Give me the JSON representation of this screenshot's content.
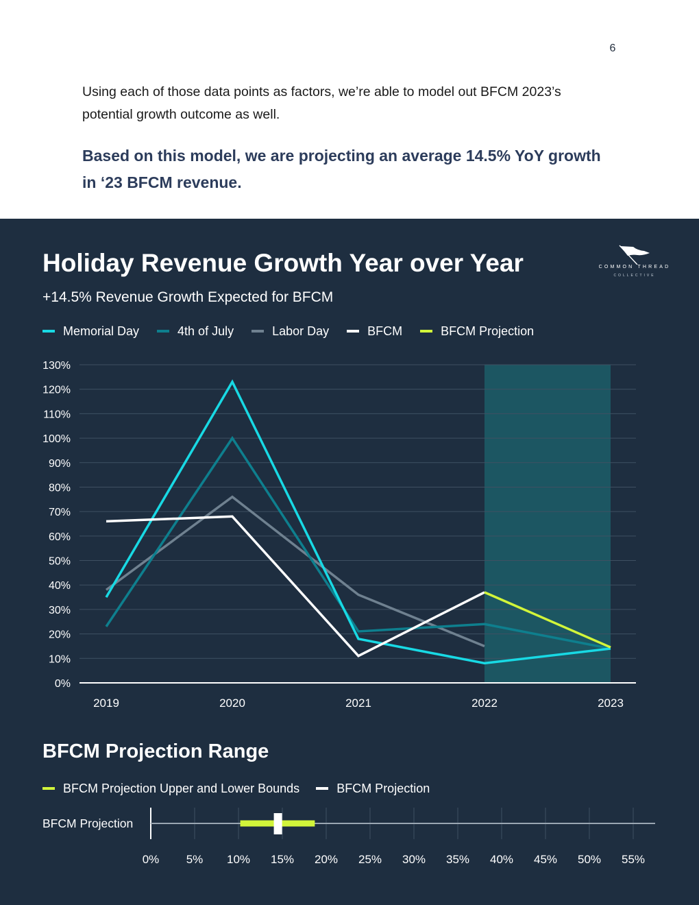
{
  "page": {
    "number": "6",
    "intro": "Using each of those data points as factors, we’re able to model out BFCM 2023’s potential growth outcome as well.",
    "highlight": "Based on this model, we are projecting an average 14.5% YoY growth in ‘23 BFCM revenue."
  },
  "logo": {
    "name": "COMMON THREAD",
    "sub": "COLLECTIVE",
    "icon": "flag-icon"
  },
  "colors": {
    "panel": "#1e2e40",
    "memorial": "#18d9e4",
    "july": "#0e7f8e",
    "labor": "#6f8190",
    "bfcm": "#ffffff",
    "projection": "#d2f53a",
    "highlight_band": "#1c5662"
  },
  "chart_data": [
    {
      "type": "line",
      "title": "Holiday Revenue Growth Year over Year",
      "subtitle": "+14.5% Revenue Growth Expected for BFCM",
      "xlabel": "",
      "ylabel": "",
      "ylim": [
        0,
        130
      ],
      "yticks": [
        "0%",
        "10%",
        "20%",
        "30%",
        "40%",
        "50%",
        "60%",
        "70%",
        "80%",
        "90%",
        "100%",
        "110%",
        "120%",
        "130%"
      ],
      "categories": [
        "2019",
        "2020",
        "2021",
        "2022",
        "2023"
      ],
      "grid": true,
      "legend": "top-left",
      "highlight_range": [
        "2022",
        "2023"
      ],
      "series": [
        {
          "name": "Memorial Day",
          "values": [
            35,
            123,
            18,
            8,
            14
          ]
        },
        {
          "name": "4th of July",
          "values": [
            23,
            100,
            21,
            24,
            14
          ]
        },
        {
          "name": "Labor Day",
          "values": [
            38,
            76,
            36,
            15,
            null
          ]
        },
        {
          "name": "BFCM",
          "values": [
            66,
            68,
            11,
            37,
            null
          ]
        },
        {
          "name": "BFCM Projection",
          "values": [
            null,
            null,
            null,
            37,
            14.5
          ]
        }
      ]
    },
    {
      "type": "range",
      "title": "BFCM Projection Range",
      "legend": [
        {
          "name": "BFCM Projection Upper and Lower Bounds"
        },
        {
          "name": "BFCM Projection"
        }
      ],
      "category": "BFCM Projection",
      "xlim": [
        0,
        57.5
      ],
      "xticks": [
        "0%",
        "5%",
        "10%",
        "15%",
        "20%",
        "25%",
        "30%",
        "35%",
        "40%",
        "45%",
        "50%",
        "55%"
      ],
      "lower": 10.2,
      "upper": 18.7,
      "projection": 14.5
    }
  ]
}
